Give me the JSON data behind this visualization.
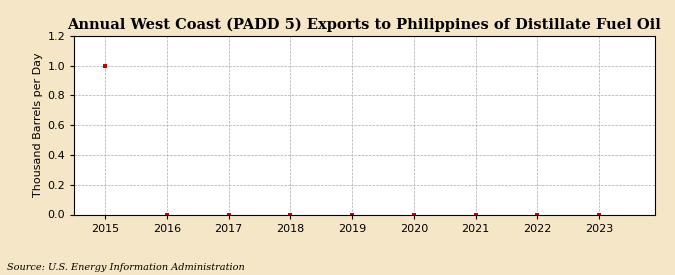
{
  "title": "Annual West Coast (PADD 5) Exports to Philippines of Distillate Fuel Oil",
  "ylabel": "Thousand Barrels per Day",
  "source": "Source: U.S. Energy Information Administration",
  "years": [
    2015,
    2016,
    2017,
    2018,
    2019,
    2020,
    2021,
    2022,
    2023
  ],
  "values": [
    1.0,
    0.0,
    0.0,
    0.0,
    0.0,
    0.0,
    0.0,
    0.0,
    0.0
  ],
  "ylim": [
    0.0,
    1.2
  ],
  "yticks": [
    0.0,
    0.2,
    0.4,
    0.6,
    0.8,
    1.0,
    1.2
  ],
  "data_color": "#cc0000",
  "grid_color": "#aaaaaa",
  "background_color": "#f5e6c8",
  "plot_bg_color": "#ffffff",
  "title_fontsize": 10.5,
  "label_fontsize": 8,
  "tick_fontsize": 8,
  "source_fontsize": 7
}
